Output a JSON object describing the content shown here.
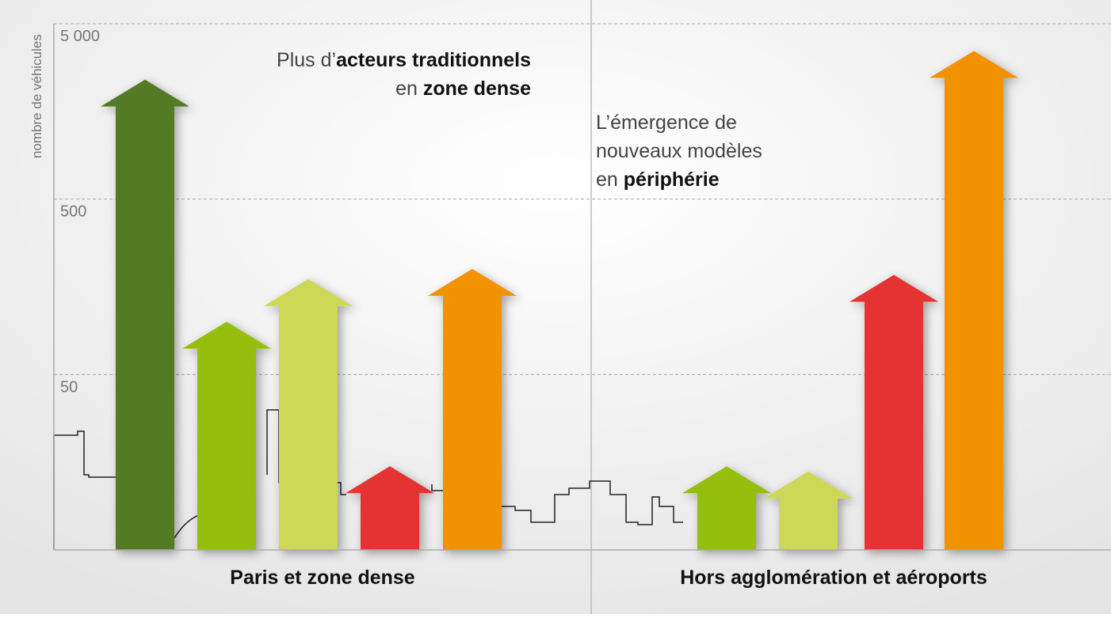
{
  "chart_data": {
    "type": "bar",
    "y_label": "nombre de véhicules",
    "log_scale": true,
    "grid": true,
    "ylim": [
      5,
      5000
    ],
    "yticks": [
      50,
      500,
      {
        "value": 5000,
        "label": "5 000"
      }
    ],
    "groups": [
      {
        "label": "Paris et zone dense",
        "values": [
          2400,
          100,
          175,
          15,
          200
        ],
        "colors": [
          "#557a26",
          "#95be0e",
          "#cdd956",
          "#e53030",
          "#f39200"
        ]
      },
      {
        "label": "Hors agglomération et aéroports",
        "values": [
          15,
          14,
          185,
          3500
        ],
        "colors": [
          "#95be0e",
          "#cdd956",
          "#e53030",
          "#f39200"
        ]
      }
    ],
    "annotations": [
      {
        "lines": [
          [
            {
              "text": "Plus d’",
              "bold": false
            },
            {
              "text": "acteurs traditionnels",
              "bold": true
            }
          ],
          [
            {
              "text": "en ",
              "bold": false
            },
            {
              "text": "zone dense",
              "bold": true
            }
          ]
        ]
      },
      {
        "lines": [
          [
            {
              "text": "L’émergence de",
              "bold": false
            }
          ],
          [
            {
              "text": "nouveaux modèles",
              "bold": false
            }
          ],
          [
            {
              "text": "en ",
              "bold": false
            },
            {
              "text": "périphérie",
              "bold": true
            }
          ]
        ]
      }
    ]
  }
}
